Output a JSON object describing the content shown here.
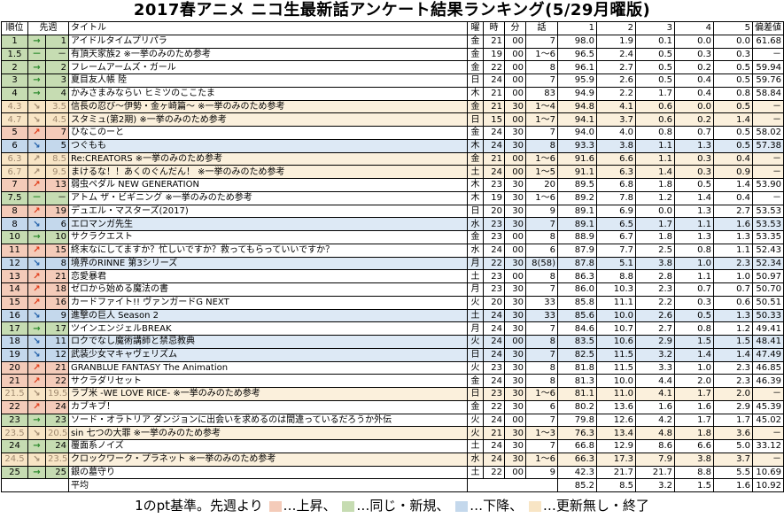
{
  "title": "2017春アニメ ニコ生最新話アンケート結果ランキング(5/29月曜版)",
  "headers": {
    "rank": "順位",
    "prev": "先週",
    "title": "タイトル",
    "day": "曜",
    "hour": "時",
    "min": "分",
    "ep": "話",
    "c1": "1",
    "c2": "2",
    "c3": "3",
    "c4": "4",
    "c5": "5",
    "dev": "偏差値"
  },
  "rows": [
    {
      "status": "same",
      "rank": "1",
      "arrow": "→",
      "prev": "1",
      "title": "アイドルタイムプリパラ",
      "day": "金",
      "hour": "21",
      "min": "00",
      "ep": "7",
      "p1": "98.0",
      "p2": "1.9",
      "p3": "0.1",
      "p4": "0.0",
      "p5": "0.0",
      "dev": "61.68"
    },
    {
      "status": "same",
      "rank": "1.5",
      "arrow": "－",
      "prev": "－",
      "title": "有頂天家族2 ※一挙のみのため参考",
      "day": "金",
      "hour": "19",
      "min": "00",
      "ep": "1〜6",
      "p1": "96.5",
      "p2": "2.4",
      "p3": "0.5",
      "p4": "0.3",
      "p5": "0.3",
      "dev": "－"
    },
    {
      "status": "same",
      "rank": "2",
      "arrow": "→",
      "prev": "2",
      "title": "フレームアームズ・ガール",
      "day": "金",
      "hour": "22",
      "min": "00",
      "ep": "8",
      "p1": "96.1",
      "p2": "2.7",
      "p3": "0.5",
      "p4": "0.2",
      "p5": "0.5",
      "dev": "59.94"
    },
    {
      "status": "same",
      "rank": "3",
      "arrow": "→",
      "prev": "3",
      "title": "夏目友人帳 陸",
      "day": "日",
      "hour": "24",
      "min": "00",
      "ep": "7",
      "p1": "95.9",
      "p2": "2.6",
      "p3": "0.5",
      "p4": "0.4",
      "p5": "0.5",
      "dev": "59.76"
    },
    {
      "status": "same",
      "rank": "4",
      "arrow": "→",
      "prev": "4",
      "title": "かみさまみならい ヒミツのここたま",
      "day": "木",
      "hour": "21",
      "min": "00",
      "ep": "83",
      "p1": "94.9",
      "p2": "2.2",
      "p3": "1.7",
      "p4": "0.4",
      "p5": "0.8",
      "dev": "58.84"
    },
    {
      "status": "ended",
      "rank": "4.3",
      "arrow": "↘",
      "prev": "3.5",
      "title": "信長の忍び〜伊勢・金ヶ崎篇〜 ※一挙のみのため参考",
      "day": "金",
      "hour": "21",
      "min": "30",
      "ep": "1〜4",
      "p1": "94.8",
      "p2": "4.1",
      "p3": "0.6",
      "p4": "0.0",
      "p5": "0.5",
      "dev": "－"
    },
    {
      "status": "ended",
      "rank": "4.7",
      "arrow": "↘",
      "prev": "4.5",
      "title": "スタミュ(第2期) ※一挙のみのため参考",
      "day": "日",
      "hour": "15",
      "min": "00",
      "ep": "1〜7",
      "p1": "94.1",
      "p2": "3.7",
      "p3": "0.6",
      "p4": "0.2",
      "p5": "1.4",
      "dev": "－"
    },
    {
      "status": "up",
      "rank": "5",
      "arrow": "↗",
      "prev": "7",
      "title": "ひなこのーと",
      "day": "金",
      "hour": "24",
      "min": "30",
      "ep": "7",
      "p1": "94.0",
      "p2": "4.0",
      "p3": "0.8",
      "p4": "0.7",
      "p5": "0.5",
      "dev": "58.02"
    },
    {
      "status": "down",
      "rank": "6",
      "arrow": "↘",
      "prev": "5",
      "title": "つぐもも",
      "day": "木",
      "hour": "24",
      "min": "30",
      "ep": "8",
      "p1": "93.3",
      "p2": "3.8",
      "p3": "1.1",
      "p4": "1.3",
      "p5": "0.5",
      "dev": "57.38"
    },
    {
      "status": "ended",
      "rank": "6.3",
      "arrow": "↗",
      "prev": "8.5",
      "title": "Re:CREATORS ※一挙のみのため参考",
      "day": "金",
      "hour": "21",
      "min": "00",
      "ep": "1〜6",
      "p1": "91.6",
      "p2": "6.6",
      "p3": "1.1",
      "p4": "0.3",
      "p5": "0.4",
      "dev": "－"
    },
    {
      "status": "ended",
      "rank": "6.7",
      "arrow": "↗",
      "prev": "9.5",
      "title": "まけるな！！あくのぐんだん！ ※一挙のみのため参考",
      "day": "土",
      "hour": "24",
      "min": "00",
      "ep": "1〜5",
      "p1": "91.1",
      "p2": "6.3",
      "p3": "1.4",
      "p4": "0.3",
      "p5": "0.9",
      "dev": "－"
    },
    {
      "status": "up",
      "rank": "7",
      "arrow": "↗",
      "prev": "13",
      "title": "弱虫ペダル NEW GENERATION",
      "day": "木",
      "hour": "23",
      "min": "30",
      "ep": "20",
      "p1": "89.5",
      "p2": "6.8",
      "p3": "1.8",
      "p4": "0.5",
      "p5": "1.4",
      "dev": "53.90"
    },
    {
      "status": "same",
      "rank": "7.5",
      "arrow": "－",
      "prev": "－",
      "title": "アトム ザ・ビギニング ※一挙のみのため参考",
      "day": "木",
      "hour": "19",
      "min": "30",
      "ep": "1〜6",
      "p1": "89.2",
      "p2": "7.8",
      "p3": "1.2",
      "p4": "1.4",
      "p5": "0.4",
      "dev": "－"
    },
    {
      "status": "up",
      "rank": "8",
      "arrow": "↗",
      "prev": "19",
      "title": "デュエル・マスターズ(2017)",
      "day": "日",
      "hour": "20",
      "min": "30",
      "ep": "9",
      "p1": "89.1",
      "p2": "6.9",
      "p3": "0.0",
      "p4": "1.3",
      "p5": "2.7",
      "dev": "53.53"
    },
    {
      "status": "down",
      "rank": "8",
      "arrow": "↘",
      "prev": "6",
      "title": "エロマンガ先生",
      "day": "水",
      "hour": "23",
      "min": "30",
      "ep": "7",
      "p1": "89.1",
      "p2": "6.5",
      "p3": "1.7",
      "p4": "1.1",
      "p5": "1.6",
      "dev": "53.53"
    },
    {
      "status": "same",
      "rank": "10",
      "arrow": "→",
      "prev": "10",
      "title": "サクラクエスト",
      "day": "金",
      "hour": "23",
      "min": "00",
      "ep": "8",
      "p1": "88.9",
      "p2": "6.7",
      "p3": "1.8",
      "p4": "1.3",
      "p5": "1.3",
      "dev": "53.35"
    },
    {
      "status": "up",
      "rank": "11",
      "arrow": "↗",
      "prev": "15",
      "title": "終末なにしてますか？忙しいですか？救ってもらっていいですか？",
      "day": "水",
      "hour": "24",
      "min": "00",
      "ep": "6",
      "p1": "87.9",
      "p2": "7.7",
      "p3": "2.5",
      "p4": "0.8",
      "p5": "1.1",
      "dev": "52.43"
    },
    {
      "status": "down",
      "rank": "12",
      "arrow": "↘",
      "prev": "8",
      "title": "境界のRINNE 第3シリーズ",
      "day": "月",
      "hour": "22",
      "min": "30",
      "ep": "8(58)",
      "p1": "87.8",
      "p2": "5.1",
      "p3": "3.8",
      "p4": "1.0",
      "p5": "2.3",
      "dev": "52.34"
    },
    {
      "status": "up",
      "rank": "13",
      "arrow": "↗",
      "prev": "21",
      "title": "恋愛暴君",
      "day": "土",
      "hour": "23",
      "min": "00",
      "ep": "8",
      "p1": "86.3",
      "p2": "8.8",
      "p3": "2.8",
      "p4": "1.1",
      "p5": "1.0",
      "dev": "50.97"
    },
    {
      "status": "up",
      "rank": "14",
      "arrow": "↗",
      "prev": "18",
      "title": "ゼロから始める魔法の書",
      "day": "月",
      "hour": "23",
      "min": "30",
      "ep": "7",
      "p1": "86.0",
      "p2": "10.3",
      "p3": "2.3",
      "p4": "0.7",
      "p5": "0.7",
      "dev": "50.70"
    },
    {
      "status": "up",
      "rank": "15",
      "arrow": "↗",
      "prev": "16",
      "title": "カードファイト!! ヴァンガードG NEXT",
      "day": "火",
      "hour": "20",
      "min": "30",
      "ep": "33",
      "p1": "85.8",
      "p2": "11.1",
      "p3": "2.2",
      "p4": "0.3",
      "p5": "0.6",
      "dev": "50.51"
    },
    {
      "status": "down",
      "rank": "16",
      "arrow": "↘",
      "prev": "9",
      "title": "進撃の巨人 Season 2",
      "day": "土",
      "hour": "24",
      "min": "30",
      "ep": "33",
      "p1": "85.6",
      "p2": "10.0",
      "p3": "2.6",
      "p4": "0.5",
      "p5": "1.3",
      "dev": "50.33"
    },
    {
      "status": "same",
      "rank": "17",
      "arrow": "→",
      "prev": "17",
      "title": "ツインエンジェルBREAK",
      "day": "月",
      "hour": "24",
      "min": "30",
      "ep": "7",
      "p1": "84.6",
      "p2": "10.7",
      "p3": "2.7",
      "p4": "0.8",
      "p5": "1.2",
      "dev": "49.41"
    },
    {
      "status": "down",
      "rank": "18",
      "arrow": "↘",
      "prev": "11",
      "title": "ロクでなし魔術講師と禁忌教典",
      "day": "火",
      "hour": "24",
      "min": "00",
      "ep": "8",
      "p1": "83.5",
      "p2": "10.6",
      "p3": "2.9",
      "p4": "1.5",
      "p5": "1.5",
      "dev": "48.41"
    },
    {
      "status": "down",
      "rank": "19",
      "arrow": "↘",
      "prev": "12",
      "title": "武装少女マキャヴェリズム",
      "day": "日",
      "hour": "24",
      "min": "30",
      "ep": "7",
      "p1": "82.5",
      "p2": "11.5",
      "p3": "3.2",
      "p4": "1.4",
      "p5": "1.4",
      "dev": "47.49"
    },
    {
      "status": "up",
      "rank": "20",
      "arrow": "↗",
      "prev": "21",
      "title": "GRANBLUE FANTASY The Animation",
      "day": "火",
      "hour": "23",
      "min": "30",
      "ep": "8",
      "p1": "81.8",
      "p2": "11.5",
      "p3": "3.3",
      "p4": "1.0",
      "p5": "2.3",
      "dev": "46.85"
    },
    {
      "status": "up",
      "rank": "21",
      "arrow": "↗",
      "prev": "22",
      "title": "サクラダリセット",
      "day": "金",
      "hour": "24",
      "min": "30",
      "ep": "8",
      "p1": "81.3",
      "p2": "10.0",
      "p3": "4.4",
      "p4": "2.0",
      "p5": "2.3",
      "dev": "46.39"
    },
    {
      "status": "ended",
      "rank": "21.5",
      "arrow": "↘",
      "prev": "19.5",
      "title": "ラブ米 -WE LOVE RICE- ※一挙のみのため参考",
      "day": "日",
      "hour": "23",
      "min": "30",
      "ep": "1〜6",
      "p1": "81.1",
      "p2": "11.0",
      "p3": "4.1",
      "p4": "1.7",
      "p5": "2.0",
      "dev": "－"
    },
    {
      "status": "up",
      "rank": "22",
      "arrow": "↗",
      "prev": "24",
      "title": "カブキブ！",
      "day": "金",
      "hour": "22",
      "min": "30",
      "ep": "6",
      "p1": "80.2",
      "p2": "13.6",
      "p3": "1.6",
      "p4": "1.6",
      "p5": "2.9",
      "dev": "45.39"
    },
    {
      "status": "same",
      "rank": "23",
      "arrow": "→",
      "prev": "23",
      "title": "ソード・オラトリア ダンジョンに出会いを求めるのは間違っているだろうか外伝",
      "day": "火",
      "hour": "24",
      "min": "00",
      "ep": "7",
      "p1": "79.8",
      "p2": "12.6",
      "p3": "4.2",
      "p4": "1.7",
      "p5": "1.7",
      "dev": "45.02"
    },
    {
      "status": "ended",
      "rank": "23.5",
      "arrow": "↘",
      "prev": "20.5",
      "title": "sin 七つの大罪 ※一挙のみのため参考",
      "day": "火",
      "hour": "21",
      "min": "30",
      "ep": "1〜3",
      "p1": "76.3",
      "p2": "13.4",
      "p3": "4.8",
      "p4": "1.8",
      "p5": "3.6",
      "dev": "－"
    },
    {
      "status": "same",
      "rank": "24",
      "arrow": "→",
      "prev": "24",
      "title": "覆面系ノイズ",
      "day": "土",
      "hour": "24",
      "min": "30",
      "ep": "7",
      "p1": "66.8",
      "p2": "12.9",
      "p3": "8.6",
      "p4": "6.6",
      "p5": "5.0",
      "dev": "33.12"
    },
    {
      "status": "ended",
      "rank": "24.5",
      "arrow": "↘",
      "prev": "23.5",
      "title": "クロックワーク・プラネット ※一挙のみのため参考",
      "day": "水",
      "hour": "24",
      "min": "30",
      "ep": "1〜6",
      "p1": "66.3",
      "p2": "17.3",
      "p3": "7.9",
      "p4": "3.8",
      "p5": "3.7",
      "dev": "－"
    },
    {
      "status": "same",
      "rank": "25",
      "arrow": "→",
      "prev": "25",
      "title": "銀の墓守り",
      "day": "土",
      "hour": "22",
      "min": "00",
      "ep": "9",
      "p1": "42.3",
      "p2": "21.7",
      "p3": "21.7",
      "p4": "8.8",
      "p5": "5.5",
      "dev": "10.69"
    }
  ],
  "average": {
    "label": "平均",
    "p1": "85.2",
    "p2": "8.5",
    "p3": "3.2",
    "p4": "1.5",
    "p5": "1.6",
    "dev": "10.92"
  },
  "legend": {
    "prefix": "1のpt基準。先週より",
    "up": "…上昇、",
    "same": "…同じ・新規、",
    "down": "…下降、",
    "ended": "…更新無し・終了"
  },
  "colors": {
    "up": "#f4cbb9",
    "same": "#c6dcb2",
    "down": "#c4d8ec",
    "ended": "#f8e5c5"
  }
}
